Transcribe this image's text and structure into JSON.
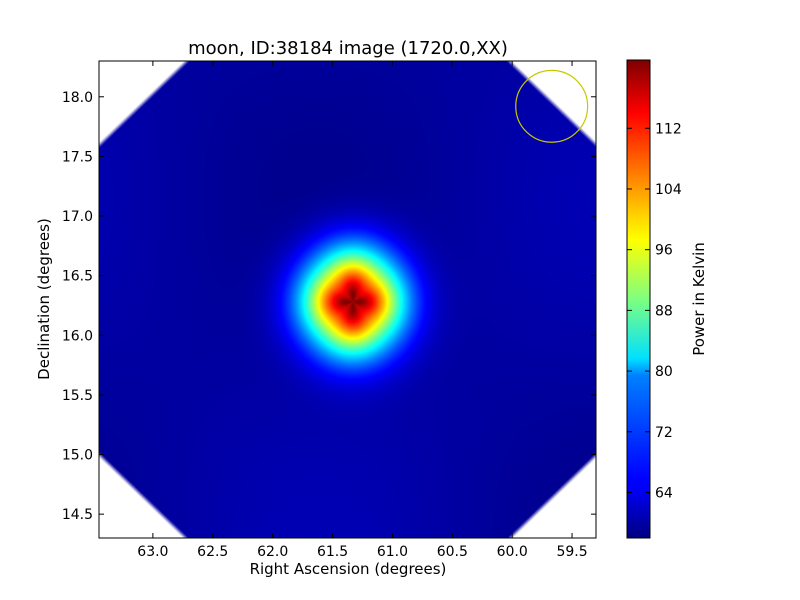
{
  "chart_data": {
    "type": "heatmap",
    "title": "moon, ID:38184 image (1720.0,XX)",
    "xlabel": "Right Ascension (degrees)",
    "ylabel": "Declination (degrees)",
    "x_axis_inverted": true,
    "xlim": [
      63.45,
      59.3
    ],
    "ylim": [
      14.3,
      18.3
    ],
    "xticks": [
      63.0,
      62.5,
      62.0,
      61.5,
      61.0,
      60.5,
      60.0,
      59.5
    ],
    "xtick_labels": [
      "63.0",
      "62.5",
      "62.0",
      "61.5",
      "61.0",
      "60.5",
      "60.0",
      "59.5"
    ],
    "yticks": [
      14.5,
      15.0,
      15.5,
      16.0,
      16.5,
      17.0,
      17.5,
      18.0
    ],
    "ytick_labels": [
      "14.5",
      "15.0",
      "15.5",
      "16.0",
      "16.5",
      "17.0",
      "17.5",
      "18.0"
    ],
    "colormap": "jet",
    "colorbar": {
      "label": "Power in Kelvin",
      "range": [
        58,
        121
      ],
      "ticks": [
        64,
        72,
        80,
        88,
        96,
        104,
        112
      ],
      "tick_labels": [
        "64",
        "72",
        "80",
        "88",
        "96",
        "104",
        "112"
      ]
    },
    "source": {
      "name": "moon",
      "center_ra": 61.33,
      "center_dec": 16.28,
      "peak_value": 121,
      "background_value": 60
    },
    "beam_circle": {
      "center_ra": 59.67,
      "center_dec": 17.92,
      "radius_deg": 0.3,
      "color": "#c8c800"
    },
    "grid": false
  }
}
